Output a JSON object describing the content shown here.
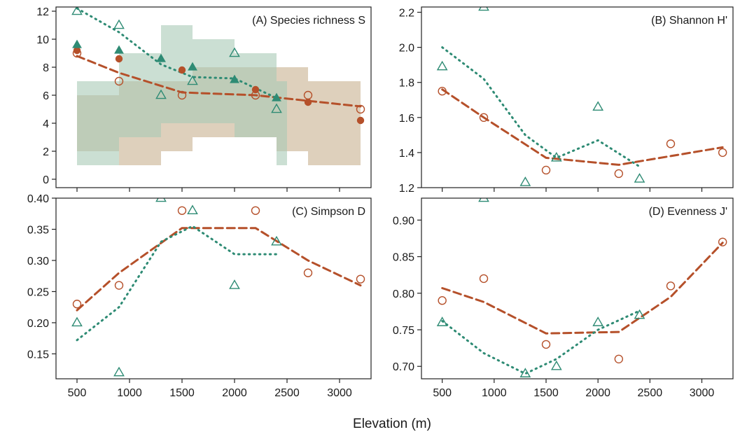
{
  "xlabel": "Elevation (m)",
  "colors": {
    "orange": "#B5502A",
    "green": "#2E8B74",
    "orange_band": "#D8C8B0",
    "green_band": "#A9C9B6",
    "overlap_band": "#8FA86F"
  },
  "chart_data": [
    {
      "id": "A",
      "type": "scatter",
      "title": "(A) Species richness S",
      "xlim": [
        300,
        3300
      ],
      "ylim": [
        -0.6,
        12.3
      ],
      "x_ticks": [
        500,
        1000,
        1500,
        2000,
        2500,
        3000
      ],
      "y_ticks": [
        0,
        2,
        4,
        6,
        8,
        10,
        12
      ],
      "y_tick_labels": [
        "0",
        "2",
        "4",
        "6",
        "8",
        "10",
        "12"
      ],
      "bands": [
        {
          "series": "orange",
          "steps": [
            {
              "x0": 500,
              "x1": 900,
              "lo": 2,
              "hi": 6
            },
            {
              "x0": 900,
              "x1": 1300,
              "lo": 1,
              "hi": 7
            },
            {
              "x0": 1300,
              "x1": 1600,
              "lo": 2,
              "hi": 7
            },
            {
              "x0": 1600,
              "x1": 2000,
              "lo": 3,
              "hi": 8
            },
            {
              "x0": 2000,
              "x1": 2400,
              "lo": 3,
              "hi": 8
            },
            {
              "x0": 2400,
              "x1": 2700,
              "lo": 2,
              "hi": 8
            },
            {
              "x0": 2700,
              "x1": 3200,
              "lo": 1,
              "hi": 7
            }
          ]
        },
        {
          "series": "green",
          "steps": [
            {
              "x0": 500,
              "x1": 900,
              "lo": 1,
              "hi": 7
            },
            {
              "x0": 900,
              "x1": 1300,
              "lo": 3,
              "hi": 9
            },
            {
              "x0": 1300,
              "x1": 1600,
              "lo": 4,
              "hi": 11
            },
            {
              "x0": 1600,
              "x1": 2000,
              "lo": 4,
              "hi": 10
            },
            {
              "x0": 2000,
              "x1": 2400,
              "lo": 3,
              "hi": 9
            },
            {
              "x0": 2400,
              "x1": 2500,
              "lo": 1,
              "hi": 7
            }
          ]
        }
      ],
      "points": [
        {
          "series": "orange",
          "marker": "circle-open",
          "x": [
            500,
            900,
            1500,
            2200,
            2700,
            3200
          ],
          "y": [
            9,
            7,
            6,
            6,
            6,
            5
          ]
        },
        {
          "series": "orange",
          "marker": "circle-filled",
          "x": [
            500,
            900,
            1500,
            2200,
            2700,
            3200
          ],
          "y": [
            9.2,
            8.6,
            7.8,
            6.4,
            5.5,
            4.2
          ]
        },
        {
          "series": "green",
          "marker": "triangle-open",
          "x": [
            500,
            900,
            1300,
            1600,
            2000,
            2400
          ],
          "y": [
            12,
            11,
            6,
            7,
            9,
            5
          ]
        },
        {
          "series": "green",
          "marker": "triangle-filled",
          "x": [
            500,
            900,
            1300,
            1600,
            2000,
            2400
          ],
          "y": [
            9.6,
            9.2,
            8.6,
            8.0,
            7.1,
            5.8
          ]
        }
      ],
      "lines": [
        {
          "series": "orange",
          "style": "dashed",
          "x": [
            500,
            900,
            1500,
            2200,
            2700,
            3200
          ],
          "y": [
            8.8,
            7.6,
            6.2,
            6.0,
            5.6,
            5.2
          ]
        },
        {
          "series": "green",
          "style": "dotted",
          "x": [
            500,
            900,
            1300,
            1600,
            2000,
            2400
          ],
          "y": [
            12.2,
            10.5,
            8.2,
            7.3,
            7.2,
            5.8
          ]
        }
      ]
    },
    {
      "id": "B",
      "type": "scatter",
      "title": "(B) Shannon H'",
      "xlim": [
        300,
        3300
      ],
      "ylim": [
        1.2,
        2.23
      ],
      "x_ticks": [
        500,
        1000,
        1500,
        2000,
        2500,
        3000
      ],
      "y_ticks": [
        1.2,
        1.4,
        1.6,
        1.8,
        2.0,
        2.2
      ],
      "y_tick_labels": [
        "1.2",
        "1.4",
        "1.6",
        "1.8",
        "2.0",
        "2.2"
      ],
      "points": [
        {
          "series": "orange",
          "marker": "circle-open",
          "x": [
            500,
            900,
            1500,
            2200,
            2700,
            3200
          ],
          "y": [
            1.75,
            1.6,
            1.3,
            1.28,
            1.45,
            1.4
          ]
        },
        {
          "series": "green",
          "marker": "triangle-open",
          "x": [
            500,
            900,
            1300,
            1600,
            2000,
            2400
          ],
          "y": [
            1.89,
            2.23,
            1.23,
            1.37,
            1.66,
            1.25
          ]
        }
      ],
      "lines": [
        {
          "series": "orange",
          "style": "dashed",
          "x": [
            500,
            900,
            1500,
            2200,
            2700,
            3200
          ],
          "y": [
            1.76,
            1.6,
            1.37,
            1.33,
            1.38,
            1.43
          ]
        },
        {
          "series": "green",
          "style": "dotted",
          "x": [
            500,
            900,
            1300,
            1600,
            2000,
            2400
          ],
          "y": [
            2.0,
            1.82,
            1.5,
            1.37,
            1.47,
            1.32
          ]
        }
      ]
    },
    {
      "id": "C",
      "type": "scatter",
      "title": "(C) Simpson D",
      "xlim": [
        300,
        3300
      ],
      "ylim": [
        0.11,
        0.4
      ],
      "x_ticks": [
        500,
        1000,
        1500,
        2000,
        2500,
        3000
      ],
      "x_tick_labels": [
        "500",
        "1000",
        "1500",
        "2000",
        "2500",
        "3000"
      ],
      "y_ticks": [
        0.15,
        0.2,
        0.25,
        0.3,
        0.35,
        0.4
      ],
      "y_tick_labels": [
        "0.15",
        "0.20",
        "0.25",
        "0.30",
        "0.35",
        "0.40"
      ],
      "points": [
        {
          "series": "orange",
          "marker": "circle-open",
          "x": [
            500,
            900,
            1500,
            2200,
            2700,
            3200
          ],
          "y": [
            0.23,
            0.26,
            0.38,
            0.38,
            0.28,
            0.27
          ]
        },
        {
          "series": "green",
          "marker": "triangle-open",
          "x": [
            500,
            900,
            1300,
            1600,
            2000,
            2400
          ],
          "y": [
            0.2,
            0.12,
            0.4,
            0.38,
            0.26,
            0.33
          ]
        }
      ],
      "lines": [
        {
          "series": "orange",
          "style": "dashed",
          "x": [
            500,
            900,
            1500,
            2200,
            2700,
            3200
          ],
          "y": [
            0.22,
            0.28,
            0.352,
            0.352,
            0.3,
            0.26
          ]
        },
        {
          "series": "green",
          "style": "dotted",
          "x": [
            500,
            900,
            1300,
            1600,
            2000,
            2400
          ],
          "y": [
            0.172,
            0.225,
            0.33,
            0.355,
            0.31,
            0.31
          ]
        }
      ]
    },
    {
      "id": "D",
      "type": "scatter",
      "title": "(D) Evenness J'",
      "xlim": [
        300,
        3300
      ],
      "ylim": [
        0.683,
        0.93
      ],
      "x_ticks": [
        500,
        1000,
        1500,
        2000,
        2500,
        3000
      ],
      "x_tick_labels": [
        "500",
        "1000",
        "1500",
        "2000",
        "2500",
        "3000"
      ],
      "y_ticks": [
        0.7,
        0.75,
        0.8,
        0.85,
        0.9
      ],
      "y_tick_labels": [
        "0.70",
        "0.75",
        "0.80",
        "0.85",
        "0.90"
      ],
      "points": [
        {
          "series": "orange",
          "marker": "circle-open",
          "x": [
            500,
            900,
            1500,
            2200,
            2700,
            3200
          ],
          "y": [
            0.79,
            0.82,
            0.73,
            0.71,
            0.81,
            0.87
          ]
        },
        {
          "series": "green",
          "marker": "triangle-open",
          "x": [
            500,
            900,
            1300,
            1600,
            2000,
            2400
          ],
          "y": [
            0.76,
            0.93,
            0.69,
            0.7,
            0.76,
            0.77
          ]
        }
      ],
      "lines": [
        {
          "series": "orange",
          "style": "dashed",
          "x": [
            500,
            900,
            1500,
            2200,
            2700,
            3200
          ],
          "y": [
            0.807,
            0.788,
            0.745,
            0.747,
            0.795,
            0.869
          ]
        },
        {
          "series": "green",
          "style": "dotted",
          "x": [
            500,
            900,
            1300,
            1600,
            2000,
            2400
          ],
          "y": [
            0.762,
            0.718,
            0.69,
            0.71,
            0.75,
            0.776
          ]
        }
      ]
    }
  ]
}
